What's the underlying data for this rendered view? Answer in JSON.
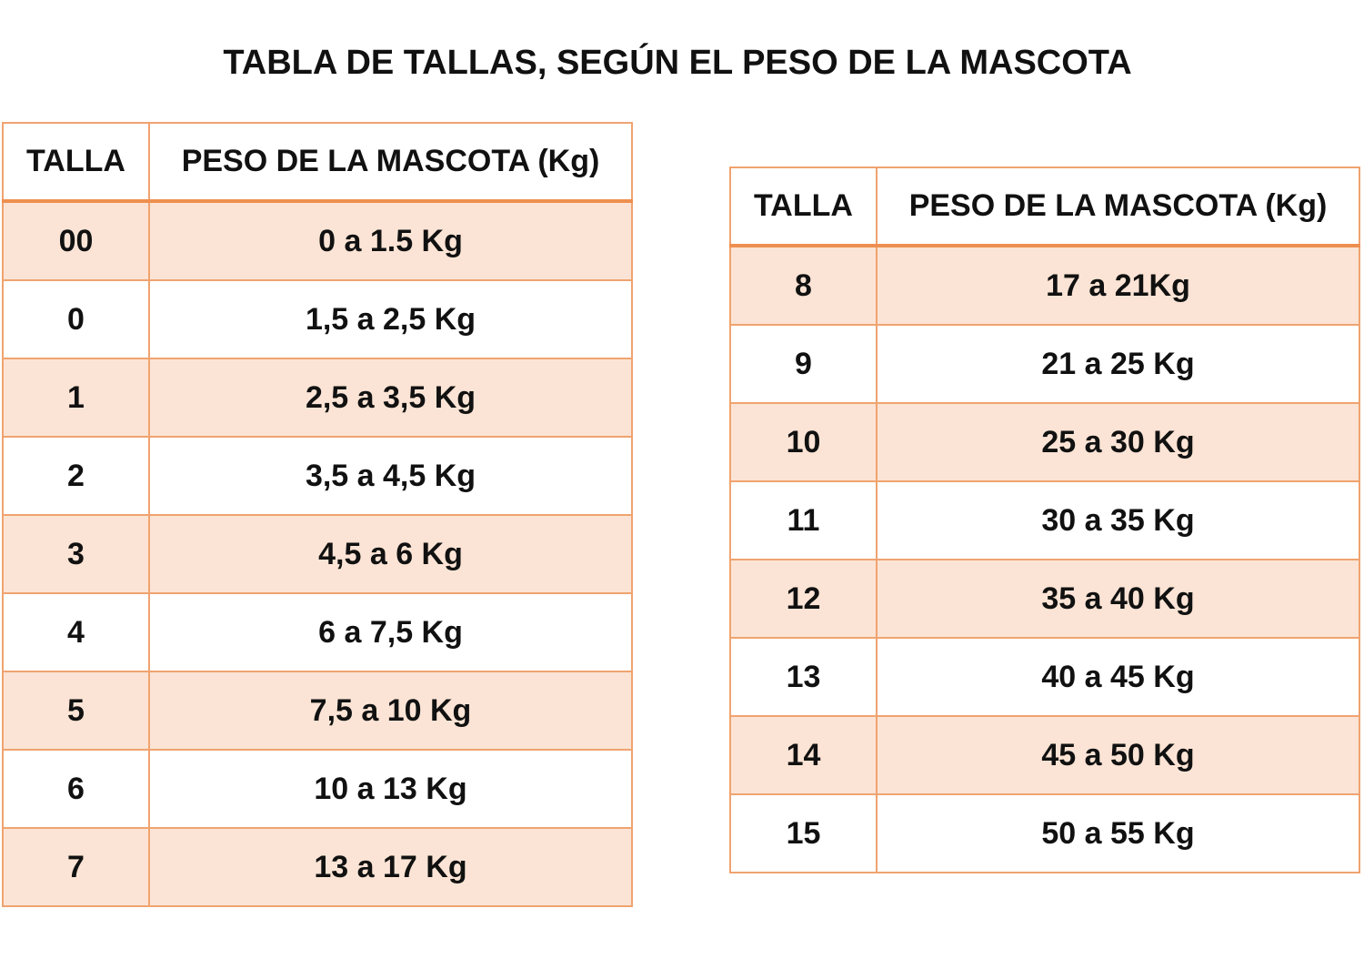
{
  "title": "TABLA DE TALLAS, SEGÚN EL PESO DE LA MASCOTA",
  "colors": {
    "border": "#f0a36f",
    "stripe": "#fbe4d5"
  },
  "tables": [
    {
      "headers": [
        "TALLA",
        "PESO DE LA MASCOTA (Kg)"
      ],
      "rows": [
        [
          "00",
          "0 a 1.5 Kg"
        ],
        [
          "0",
          "1,5 a 2,5 Kg"
        ],
        [
          "1",
          "2,5 a 3,5 Kg"
        ],
        [
          "2",
          "3,5 a 4,5 Kg"
        ],
        [
          "3",
          "4,5 a 6 Kg"
        ],
        [
          "4",
          "6 a 7,5 Kg"
        ],
        [
          "5",
          "7,5 a 10 Kg"
        ],
        [
          "6",
          "10 a 13 Kg"
        ],
        [
          "7",
          "13 a 17 Kg"
        ]
      ]
    },
    {
      "headers": [
        "TALLA",
        "PESO DE LA MASCOTA (Kg)"
      ],
      "rows": [
        [
          "8",
          "17 a 21Kg"
        ],
        [
          "9",
          "21 a 25 Kg"
        ],
        [
          "10",
          "25 a 30 Kg"
        ],
        [
          "11",
          "30 a 35 Kg"
        ],
        [
          "12",
          "35 a 40 Kg"
        ],
        [
          "13",
          "40 a 45 Kg"
        ],
        [
          "14",
          "45 a 50 Kg"
        ],
        [
          "15",
          "50 a 55 Kg"
        ]
      ]
    }
  ]
}
